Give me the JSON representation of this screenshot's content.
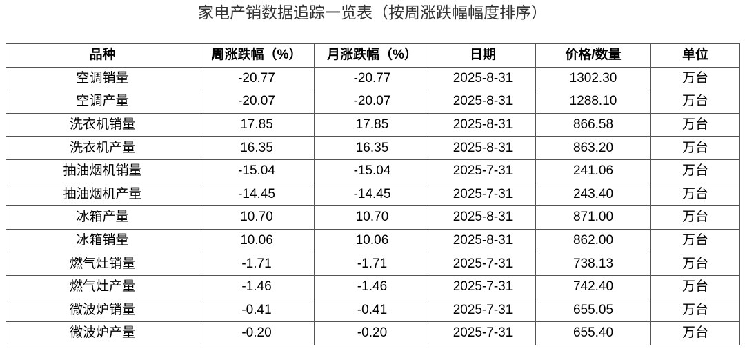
{
  "header": {
    "title": "家电产销数据追踪一览表（按周涨跌幅幅度排序）"
  },
  "table": {
    "columns": [
      "品种",
      "周涨跌幅（%）",
      "月涨跌幅（%）",
      "日期",
      "价格/数量",
      "单位"
    ],
    "rows": [
      [
        "空调销量",
        "-20.77",
        "-20.77",
        "2025-8-31",
        "1302.30",
        "万台"
      ],
      [
        "空调产量",
        "-20.07",
        "-20.07",
        "2025-8-31",
        "1288.10",
        "万台"
      ],
      [
        "洗衣机销量",
        "17.85",
        "17.85",
        "2025-8-31",
        "866.58",
        "万台"
      ],
      [
        "洗衣机产量",
        "16.35",
        "16.35",
        "2025-8-31",
        "863.20",
        "万台"
      ],
      [
        "抽油烟机销量",
        "-15.04",
        "-15.04",
        "2025-7-31",
        "241.06",
        "万台"
      ],
      [
        "抽油烟机产量",
        "-14.45",
        "-14.45",
        "2025-7-31",
        "243.40",
        "万台"
      ],
      [
        "冰箱产量",
        "10.70",
        "10.70",
        "2025-8-31",
        "871.00",
        "万台"
      ],
      [
        "冰箱销量",
        "10.06",
        "10.06",
        "2025-8-31",
        "862.00",
        "万台"
      ],
      [
        "燃气灶销量",
        "-1.71",
        "-1.71",
        "2025-7-31",
        "738.13",
        "万台"
      ],
      [
        "燃气灶产量",
        "-1.46",
        "-1.46",
        "2025-7-31",
        "742.40",
        "万台"
      ],
      [
        "微波炉销量",
        "-0.41",
        "-0.41",
        "2025-7-31",
        "655.05",
        "万台"
      ],
      [
        "微波炉产量",
        "-0.20",
        "-0.20",
        "2025-7-31",
        "655.40",
        "万台"
      ]
    ]
  }
}
